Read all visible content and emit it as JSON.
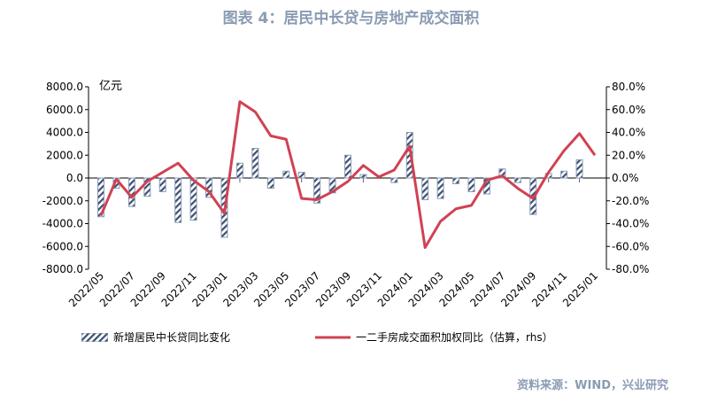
{
  "title": "图表 4：居民中长贷与房地产成交面积",
  "source": "资料来源：WIND，兴业研究",
  "colors": {
    "bar": "#3b4e73",
    "line": "#d04253",
    "title": "#8a9bb3"
  },
  "chart_data": {
    "type": "bar+line",
    "left_unit": "亿元",
    "left_ylim": [
      -8000,
      8000
    ],
    "right_ylim": [
      -80,
      80
    ],
    "left_ticks": [
      "8000.0",
      "6000.0",
      "4000.0",
      "2000.0",
      "0.0",
      "-2000.0",
      "-4000.0",
      "-6000.0",
      "-8000.0"
    ],
    "right_ticks": [
      "80.0%",
      "60.0%",
      "40.0%",
      "20.0%",
      "0.0%",
      "-20.0%",
      "-40.0%",
      "-60.0%",
      "-80.0%"
    ],
    "x": [
      "2022/05",
      "2022/06",
      "2022/07",
      "2022/08",
      "2022/09",
      "2022/10",
      "2022/11",
      "2022/12",
      "2023/01",
      "2023/02",
      "2023/03",
      "2023/04",
      "2023/05",
      "2023/06",
      "2023/07",
      "2023/08",
      "2023/09",
      "2023/10",
      "2023/11",
      "2023/12",
      "2024/01",
      "2024/02",
      "2024/03",
      "2024/04",
      "2024/05",
      "2024/06",
      "2024/07",
      "2024/08",
      "2024/09",
      "2024/10",
      "2024/11",
      "2024/12",
      "2025/01"
    ],
    "x_tick_labels": [
      "2022/05",
      "2022/07",
      "2022/09",
      "2022/11",
      "2023/01",
      "2023/03",
      "2023/05",
      "2023/07",
      "2023/09",
      "2023/11",
      "2024/01",
      "2024/03",
      "2024/05",
      "2024/07",
      "2024/09",
      "2024/11",
      "2025/01"
    ],
    "series": [
      {
        "name": "新增居民中长贷同比变化",
        "axis": "left",
        "type": "bar",
        "values": [
          -3400,
          -900,
          -2500,
          -1600,
          -1200,
          -3900,
          -3700,
          -1700,
          -5200,
          1300,
          2600,
          -900,
          600,
          500,
          -2200,
          -1300,
          2000,
          300,
          0,
          -400,
          4000,
          -1900,
          -1800,
          -500,
          -1200,
          -1400,
          800,
          -400,
          -3200,
          400,
          600,
          1600,
          0
        ]
      },
      {
        "name": "一二手房成交面积加权同比（估算，rhs）",
        "axis": "right",
        "type": "line",
        "values": [
          -33,
          -1,
          -17,
          -3,
          5,
          13,
          -2,
          -12,
          -31,
          67,
          58,
          37,
          34,
          -18,
          -19,
          -12,
          -3,
          11,
          1,
          7,
          28,
          -61,
          -38,
          -27,
          -24,
          -2,
          2,
          -9,
          -18,
          5,
          24,
          39,
          20
        ]
      }
    ]
  }
}
